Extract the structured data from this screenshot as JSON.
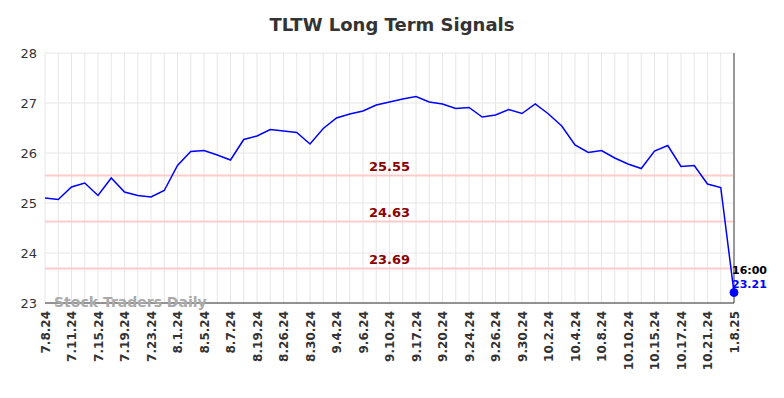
{
  "chart_data": {
    "type": "line",
    "title": "TLTW Long Term Signals",
    "watermark": "Stock Traders Daily",
    "categories": [
      "7.8.24",
      null,
      "7.11.24",
      null,
      "7.15.24",
      null,
      "7.19.24",
      null,
      "7.23.24",
      null,
      "8.1.24",
      null,
      "8.5.24",
      null,
      "8.7.24",
      null,
      "8.19.24",
      null,
      "8.26.24",
      null,
      "8.30.24",
      null,
      "9.4.24",
      null,
      "9.6.24",
      null,
      "9.10.24",
      null,
      "9.17.24",
      null,
      "9.20.24",
      null,
      "9.24.24",
      null,
      "9.26.24",
      null,
      "9.30.24",
      null,
      "10.2.24",
      null,
      "10.4.24",
      null,
      "10.8.24",
      null,
      "10.10.24",
      null,
      "10.15.24",
      null,
      "10.17.24",
      null,
      "10.21.24",
      null,
      "1.8.25"
    ],
    "values": [
      25.1,
      25.07,
      25.32,
      25.4,
      25.15,
      25.5,
      25.22,
      25.15,
      25.12,
      25.25,
      25.75,
      26.03,
      26.05,
      25.96,
      25.86,
      26.27,
      26.34,
      26.47,
      26.44,
      26.41,
      26.18,
      26.49,
      26.7,
      26.78,
      26.84,
      26.96,
      27.02,
      27.08,
      27.13,
      27.02,
      26.98,
      26.89,
      26.91,
      26.72,
      26.76,
      26.87,
      26.79,
      26.98,
      26.78,
      26.54,
      26.16,
      26.01,
      26.05,
      25.9,
      25.78,
      25.69,
      26.04,
      26.15,
      25.73,
      25.75,
      25.38,
      25.31,
      23.21
    ],
    "color": "#0000ff",
    "ylim": [
      23,
      28
    ],
    "yticks": [
      23,
      24,
      25,
      26,
      27,
      28
    ],
    "grid": true,
    "reference_lines": [
      25.55,
      24.63,
      23.69
    ],
    "annotations": [
      "16:00",
      "23.21"
    ]
  }
}
